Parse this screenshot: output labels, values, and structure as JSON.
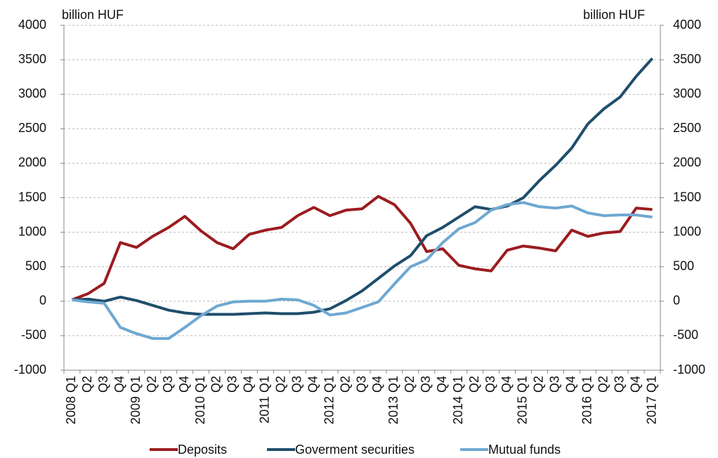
{
  "chart_data": {
    "type": "line",
    "y_label": "billion HUF",
    "y2_label": "billion HUF",
    "categories": [
      "2008 Q1",
      "Q2",
      "Q3",
      "Q4",
      "2009 Q1",
      "Q2",
      "Q3",
      "Q4",
      "2010 Q1",
      "Q2",
      "Q3",
      "Q4",
      "2011 Q1",
      "Q2",
      "Q3",
      "Q4",
      "2012 Q1",
      "Q2",
      "Q3",
      "Q4",
      "2013 Q1",
      "Q2",
      "Q3",
      "Q4",
      "2014 Q1",
      "Q2",
      "Q3",
      "Q4",
      "2015 Q1",
      "Q2",
      "Q3",
      "Q4",
      "2016 Q1",
      "Q2",
      "Q3",
      "Q4",
      "2017 Q1"
    ],
    "series": [
      {
        "name": "Deposits",
        "color": "#9b1c20",
        "values": [
          20,
          110,
          260,
          850,
          780,
          940,
          1070,
          1230,
          1020,
          850,
          760,
          970,
          1030,
          1070,
          1240,
          1360,
          1240,
          1320,
          1340,
          1520,
          1400,
          1130,
          720,
          760,
          520,
          470,
          440,
          740,
          800,
          770,
          730,
          1030,
          940,
          990,
          1010,
          1350,
          1330
        ]
      },
      {
        "name": "Goverment securities",
        "color": "#1f4e6b",
        "values": [
          20,
          30,
          0,
          60,
          10,
          -60,
          -130,
          -170,
          -190,
          -190,
          -190,
          -180,
          -170,
          -180,
          -180,
          -160,
          -110,
          10,
          150,
          330,
          510,
          660,
          950,
          1070,
          1220,
          1370,
          1330,
          1380,
          1500,
          1750,
          1970,
          2220,
          2570,
          2790,
          2960,
          3260,
          3520
        ]
      },
      {
        "name": "Mutual funds",
        "color": "#6fa8d2",
        "values": [
          20,
          -10,
          -30,
          -380,
          -470,
          -540,
          -540,
          -380,
          -210,
          -70,
          -10,
          0,
          0,
          30,
          20,
          -60,
          -200,
          -170,
          -90,
          -10,
          250,
          500,
          600,
          850,
          1050,
          1140,
          1320,
          1400,
          1430,
          1370,
          1350,
          1380,
          1280,
          1240,
          1250,
          1250,
          1220
        ]
      }
    ],
    "ylim": [
      -1000,
      4000
    ],
    "yticks": [
      -1000,
      -500,
      0,
      500,
      1000,
      1500,
      2000,
      2500,
      3000,
      3500,
      4000
    ],
    "y2lim": [
      -1000,
      4000
    ],
    "y2ticks": [
      -1000,
      -500,
      0,
      500,
      1000,
      1500,
      2000,
      2500,
      3000,
      3500,
      4000
    ],
    "grid": true
  }
}
